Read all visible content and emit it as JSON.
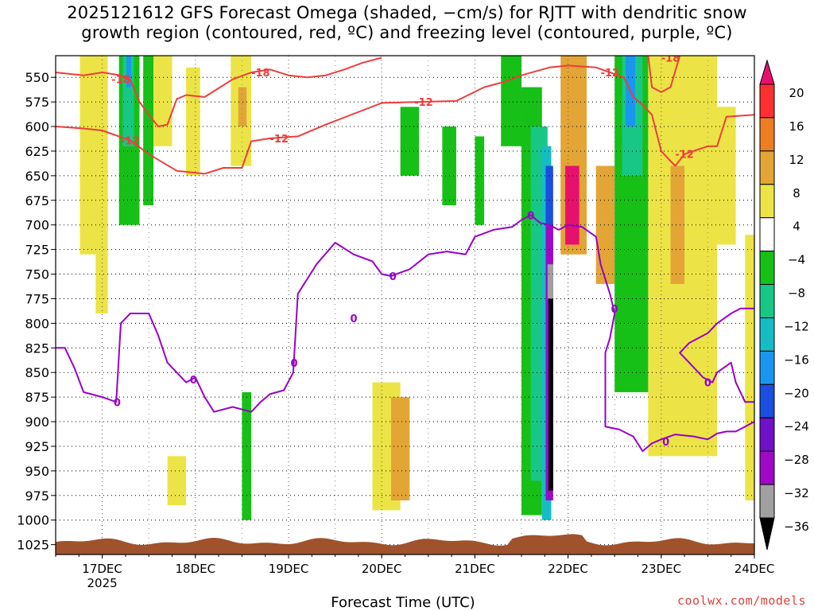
{
  "chart_data": {
    "type": "heatmap",
    "title_line1": "2025121612 GFS Forecast Omega (shaded, −cm/s) for RJTT with dendritic snow",
    "title_line2": "growth region (contoured, red, ºC) and freezing level (contoured, purple, ºC)",
    "xlabel": "Forecast Time (UTC)",
    "credit": "coolwx.com/models",
    "x_ticks": [
      "17DEC",
      "18DEC",
      "19DEC",
      "20DEC",
      "21DEC",
      "22DEC",
      "23DEC",
      "24DEC"
    ],
    "x_year": "2025",
    "x_range_days": [
      16.5,
      24.0
    ],
    "y_ticks": [
      550,
      575,
      600,
      625,
      650,
      675,
      700,
      725,
      750,
      775,
      800,
      825,
      850,
      875,
      900,
      925,
      950,
      975,
      1000,
      1025
    ],
    "y_range_hpa": [
      528,
      1035
    ],
    "colorbar": {
      "labels": [
        "20",
        "16",
        "12",
        "8",
        "4",
        "−4",
        "−8",
        "−12",
        "−16",
        "−20",
        "−24",
        "−28",
        "−32",
        "−36"
      ],
      "colors": [
        "#e8106e",
        "#ff3030",
        "#ef7d22",
        "#e2a536",
        "#ece446",
        "#ffffff",
        "#16c016",
        "#18c786",
        "#16bcc4",
        "#1a96f0",
        "#1c4ee0",
        "#7010c8",
        "#a008c8",
        "#a0a0a0",
        "#000000"
      ]
    },
    "shading_colors": {
      "pos4": "#ece446",
      "pos8": "#e2a536",
      "pos12": "#ef7d22",
      "pos20": "#e8106e",
      "neg4": "#16c016",
      "neg8": "#18c786",
      "neg12": "#16bcc4",
      "neg16": "#1a96f0",
      "neg20": "#1c4ee0",
      "neg24": "#7010c8",
      "neg28": "#a008c8",
      "neg32": "#a0a0a0",
      "neg36": "#000000",
      "ground": "#a0522d"
    },
    "shading_regions": [
      {
        "x0": 16.76,
        "x1": 16.95,
        "p0": 528,
        "p1": 730,
        "level": "pos4"
      },
      {
        "x0": 16.93,
        "x1": 17.06,
        "p0": 528,
        "p1": 790,
        "level": "pos4"
      },
      {
        "x0": 17.18,
        "x1": 17.4,
        "p0": 528,
        "p1": 700,
        "level": "neg4"
      },
      {
        "x0": 17.22,
        "x1": 17.34,
        "p0": 528,
        "p1": 620,
        "level": "neg8"
      },
      {
        "x0": 17.26,
        "x1": 17.31,
        "p0": 528,
        "p1": 560,
        "level": "neg16"
      },
      {
        "x0": 17.44,
        "x1": 17.55,
        "p0": 528,
        "p1": 680,
        "level": "neg4"
      },
      {
        "x0": 17.55,
        "x1": 17.75,
        "p0": 528,
        "p1": 620,
        "level": "pos4"
      },
      {
        "x0": 17.9,
        "x1": 18.05,
        "p0": 540,
        "p1": 650,
        "level": "pos4"
      },
      {
        "x0": 18.38,
        "x1": 18.6,
        "p0": 528,
        "p1": 640,
        "level": "pos4"
      },
      {
        "x0": 18.46,
        "x1": 18.55,
        "p0": 560,
        "p1": 600,
        "level": "pos8"
      },
      {
        "x0": 17.7,
        "x1": 17.9,
        "p0": 935,
        "p1": 985,
        "level": "pos4"
      },
      {
        "x0": 18.5,
        "x1": 18.6,
        "p0": 870,
        "p1": 1000,
        "level": "neg4"
      },
      {
        "x0": 19.9,
        "x1": 20.2,
        "p0": 860,
        "p1": 990,
        "level": "pos4"
      },
      {
        "x0": 20.1,
        "x1": 20.3,
        "p0": 875,
        "p1": 980,
        "level": "pos8"
      },
      {
        "x0": 20.2,
        "x1": 20.4,
        "p0": 580,
        "p1": 650,
        "level": "neg4"
      },
      {
        "x0": 20.65,
        "x1": 20.8,
        "p0": 600,
        "p1": 680,
        "level": "neg4"
      },
      {
        "x0": 21.0,
        "x1": 21.1,
        "p0": 610,
        "p1": 700,
        "level": "neg4"
      },
      {
        "x0": 21.28,
        "x1": 21.5,
        "p0": 528,
        "p1": 620,
        "level": "neg4"
      },
      {
        "x0": 21.5,
        "x1": 21.72,
        "p0": 560,
        "p1": 995,
        "level": "neg4"
      },
      {
        "x0": 21.6,
        "x1": 21.78,
        "p0": 600,
        "p1": 960,
        "level": "neg8"
      },
      {
        "x0": 21.72,
        "x1": 21.82,
        "p0": 620,
        "p1": 1000,
        "level": "neg12"
      },
      {
        "x0": 21.76,
        "x1": 21.84,
        "p0": 640,
        "p1": 740,
        "level": "neg20"
      },
      {
        "x0": 21.76,
        "x1": 21.84,
        "p0": 700,
        "p1": 980,
        "level": "neg28"
      },
      {
        "x0": 21.78,
        "x1": 21.84,
        "p0": 740,
        "p1": 775,
        "level": "neg32"
      },
      {
        "x0": 21.79,
        "x1": 21.84,
        "p0": 775,
        "p1": 970,
        "level": "neg36"
      },
      {
        "x0": 21.92,
        "x1": 22.2,
        "p0": 528,
        "p1": 730,
        "level": "pos8"
      },
      {
        "x0": 21.97,
        "x1": 22.12,
        "p0": 640,
        "p1": 720,
        "level": "pos20"
      },
      {
        "x0": 22.3,
        "x1": 22.5,
        "p0": 640,
        "p1": 760,
        "level": "pos8"
      },
      {
        "x0": 22.5,
        "x1": 22.86,
        "p0": 528,
        "p1": 870,
        "level": "neg4"
      },
      {
        "x0": 22.58,
        "x1": 22.8,
        "p0": 528,
        "p1": 650,
        "level": "neg8"
      },
      {
        "x0": 22.62,
        "x1": 22.72,
        "p0": 528,
        "p1": 600,
        "level": "neg16"
      },
      {
        "x0": 22.86,
        "x1": 23.6,
        "p0": 528,
        "p1": 935,
        "level": "pos4"
      },
      {
        "x0": 23.1,
        "x1": 23.25,
        "p0": 640,
        "p1": 760,
        "level": "pos8"
      },
      {
        "x0": 23.55,
        "x1": 23.8,
        "p0": 580,
        "p1": 720,
        "level": "pos4"
      },
      {
        "x0": 23.9,
        "x1": 24.0,
        "p0": 710,
        "p1": 980,
        "level": "pos4"
      }
    ],
    "dendritic_contours": [
      {
        "label": "-18",
        "points": [
          [
            16.5,
            545
          ],
          [
            16.8,
            548
          ],
          [
            17.0,
            545
          ],
          [
            17.2,
            548
          ],
          [
            17.3,
            552
          ],
          [
            17.4,
            575
          ],
          [
            17.5,
            588
          ],
          [
            17.6,
            600
          ],
          [
            17.7,
            598
          ],
          [
            17.8,
            572
          ],
          [
            17.9,
            568
          ],
          [
            18.1,
            570
          ],
          [
            18.4,
            552
          ],
          [
            18.6,
            545
          ],
          [
            18.8,
            542
          ],
          [
            19.0,
            548
          ],
          [
            19.2,
            550
          ],
          [
            19.4,
            548
          ],
          [
            19.6,
            542
          ],
          [
            19.8,
            535
          ],
          [
            20.0,
            530
          ]
        ]
      },
      {
        "label": "-12",
        "points": [
          [
            16.5,
            600
          ],
          [
            16.8,
            602
          ],
          [
            17.0,
            604
          ],
          [
            17.3,
            614
          ],
          [
            17.5,
            628
          ],
          [
            17.8,
            645
          ],
          [
            18.1,
            648
          ],
          [
            18.3,
            642
          ],
          [
            18.5,
            642
          ],
          [
            18.6,
            615
          ],
          [
            18.8,
            612
          ],
          [
            19.1,
            610
          ],
          [
            19.4,
            598
          ],
          [
            19.7,
            587
          ],
          [
            20.0,
            576
          ],
          [
            20.4,
            575
          ],
          [
            20.8,
            574
          ],
          [
            21.1,
            560
          ],
          [
            21.3,
            555
          ],
          [
            21.5,
            548
          ],
          [
            21.8,
            540
          ],
          [
            22.0,
            538
          ],
          [
            22.3,
            540
          ],
          [
            22.6,
            550
          ],
          [
            22.7,
            570
          ],
          [
            22.8,
            578
          ],
          [
            22.9,
            588
          ],
          [
            23.0,
            625
          ],
          [
            23.15,
            640
          ],
          [
            23.25,
            628
          ],
          [
            23.5,
            620
          ],
          [
            23.6,
            620
          ],
          [
            23.7,
            590
          ],
          [
            24.0,
            588
          ]
        ]
      },
      {
        "label": "-18",
        "points": [
          [
            22.86,
            528
          ],
          [
            22.9,
            560
          ],
          [
            23.0,
            565
          ],
          [
            23.1,
            560
          ],
          [
            23.2,
            528
          ]
        ]
      }
    ],
    "freezing_contour": {
      "label": "0",
      "points": [
        [
          16.5,
          825
        ],
        [
          16.6,
          825
        ],
        [
          16.7,
          845
        ],
        [
          16.8,
          870
        ],
        [
          17.0,
          875
        ],
        [
          17.15,
          880
        ],
        [
          17.2,
          800
        ],
        [
          17.3,
          790
        ],
        [
          17.5,
          790
        ],
        [
          17.6,
          812
        ],
        [
          17.7,
          840
        ],
        [
          17.9,
          860
        ],
        [
          18.0,
          855
        ],
        [
          18.1,
          875
        ],
        [
          18.2,
          890
        ],
        [
          18.4,
          885
        ],
        [
          18.6,
          890
        ],
        [
          18.7,
          880
        ],
        [
          18.8,
          872
        ],
        [
          18.95,
          868
        ],
        [
          19.05,
          850
        ],
        [
          19.1,
          770
        ],
        [
          19.3,
          740
        ],
        [
          19.5,
          718
        ],
        [
          19.7,
          730
        ],
        [
          19.9,
          737
        ],
        [
          20.0,
          750
        ],
        [
          20.1,
          752
        ],
        [
          20.3,
          745
        ],
        [
          20.5,
          730
        ],
        [
          20.7,
          727
        ],
        [
          20.9,
          730
        ],
        [
          21.0,
          712
        ],
        [
          21.2,
          705
        ],
        [
          21.4,
          702
        ],
        [
          21.5,
          695
        ],
        [
          21.6,
          690
        ],
        [
          21.7,
          698
        ],
        [
          21.8,
          700
        ],
        [
          21.9,
          705
        ],
        [
          22.0,
          700
        ],
        [
          22.15,
          702
        ],
        [
          22.3,
          712
        ],
        [
          22.35,
          740
        ],
        [
          22.45,
          770
        ],
        [
          22.5,
          790
        ],
        [
          22.45,
          815
        ],
        [
          22.4,
          830
        ],
        [
          22.4,
          905
        ],
        [
          22.55,
          908
        ],
        [
          22.7,
          915
        ],
        [
          22.8,
          930
        ],
        [
          22.9,
          922
        ],
        [
          23.0,
          918
        ],
        [
          23.15,
          913
        ],
        [
          23.35,
          915
        ],
        [
          23.5,
          918
        ],
        [
          23.6,
          912
        ],
        [
          23.7,
          910
        ],
        [
          23.8,
          910
        ],
        [
          23.9,
          905
        ],
        [
          24.0,
          900
        ]
      ]
    },
    "freezing_contour2": {
      "label": "0",
      "points": [
        [
          24.0,
          785
        ],
        [
          23.85,
          785
        ],
        [
          23.75,
          790
        ],
        [
          23.6,
          800
        ],
        [
          23.5,
          810
        ],
        [
          23.4,
          815
        ],
        [
          23.3,
          820
        ],
        [
          23.2,
          830
        ],
        [
          23.3,
          840
        ],
        [
          23.45,
          855
        ],
        [
          23.55,
          860
        ],
        [
          23.6,
          850
        ],
        [
          23.75,
          840
        ],
        [
          23.8,
          860
        ],
        [
          23.9,
          880
        ],
        [
          24.0,
          880
        ]
      ]
    },
    "ground_top_hpa": 1018
  }
}
